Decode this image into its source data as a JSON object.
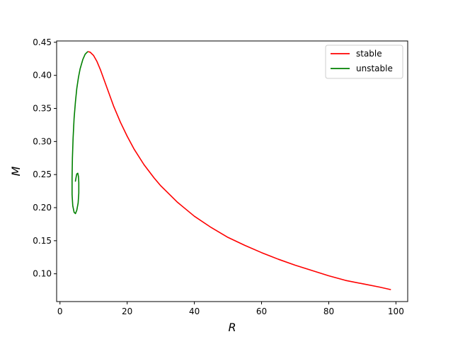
{
  "chart_data": {
    "type": "line",
    "xlabel": "R",
    "ylabel": "M",
    "xlim": [
      -1,
      103.5
    ],
    "ylim": [
      0.058,
      0.452
    ],
    "xticks": [
      0,
      20,
      40,
      60,
      80,
      100
    ],
    "yticks": [
      0.1,
      0.15,
      0.2,
      0.25,
      0.3,
      0.35,
      0.4,
      0.45
    ],
    "xtick_labels": [
      "0",
      "20",
      "40",
      "60",
      "80",
      "100"
    ],
    "ytick_labels": [
      "0.10",
      "0.15",
      "0.20",
      "0.25",
      "0.30",
      "0.35",
      "0.40",
      "0.45"
    ],
    "grid": false,
    "legend_position": "top-right",
    "series": [
      {
        "name": "stable",
        "color": "#ff0000",
        "x": [
          8.3,
          9.0,
          10.0,
          11.0,
          12.0,
          13.0,
          14.0,
          15.0,
          16.0,
          18.0,
          20.0,
          22.0,
          25.0,
          28.0,
          30.0,
          35.0,
          40.0,
          45.0,
          50.0,
          55.0,
          60.0,
          65.0,
          70.0,
          75.0,
          80.0,
          85.0,
          90.0,
          95.0,
          98.5
        ],
        "y": [
          0.436,
          0.435,
          0.43,
          0.421,
          0.409,
          0.395,
          0.381,
          0.367,
          0.353,
          0.329,
          0.308,
          0.289,
          0.265,
          0.245,
          0.233,
          0.208,
          0.187,
          0.17,
          0.155,
          0.143,
          0.132,
          0.122,
          0.113,
          0.105,
          0.097,
          0.09,
          0.085,
          0.08,
          0.076
        ]
      },
      {
        "name": "unstable",
        "color": "#008000",
        "x": [
          8.3,
          7.5,
          6.8,
          6.0,
          5.5,
          5.0,
          4.6,
          4.2,
          3.9,
          3.7,
          3.6,
          3.6,
          3.8,
          4.2,
          4.6,
          5.0,
          5.4,
          5.6,
          5.6,
          5.5,
          5.3,
          5.0,
          4.8,
          4.6,
          4.6
        ],
        "y": [
          0.436,
          0.432,
          0.424,
          0.41,
          0.397,
          0.38,
          0.36,
          0.335,
          0.305,
          0.275,
          0.245,
          0.22,
          0.203,
          0.193,
          0.191,
          0.196,
          0.207,
          0.222,
          0.238,
          0.247,
          0.252,
          0.251,
          0.246,
          0.24,
          0.241
        ]
      }
    ]
  }
}
